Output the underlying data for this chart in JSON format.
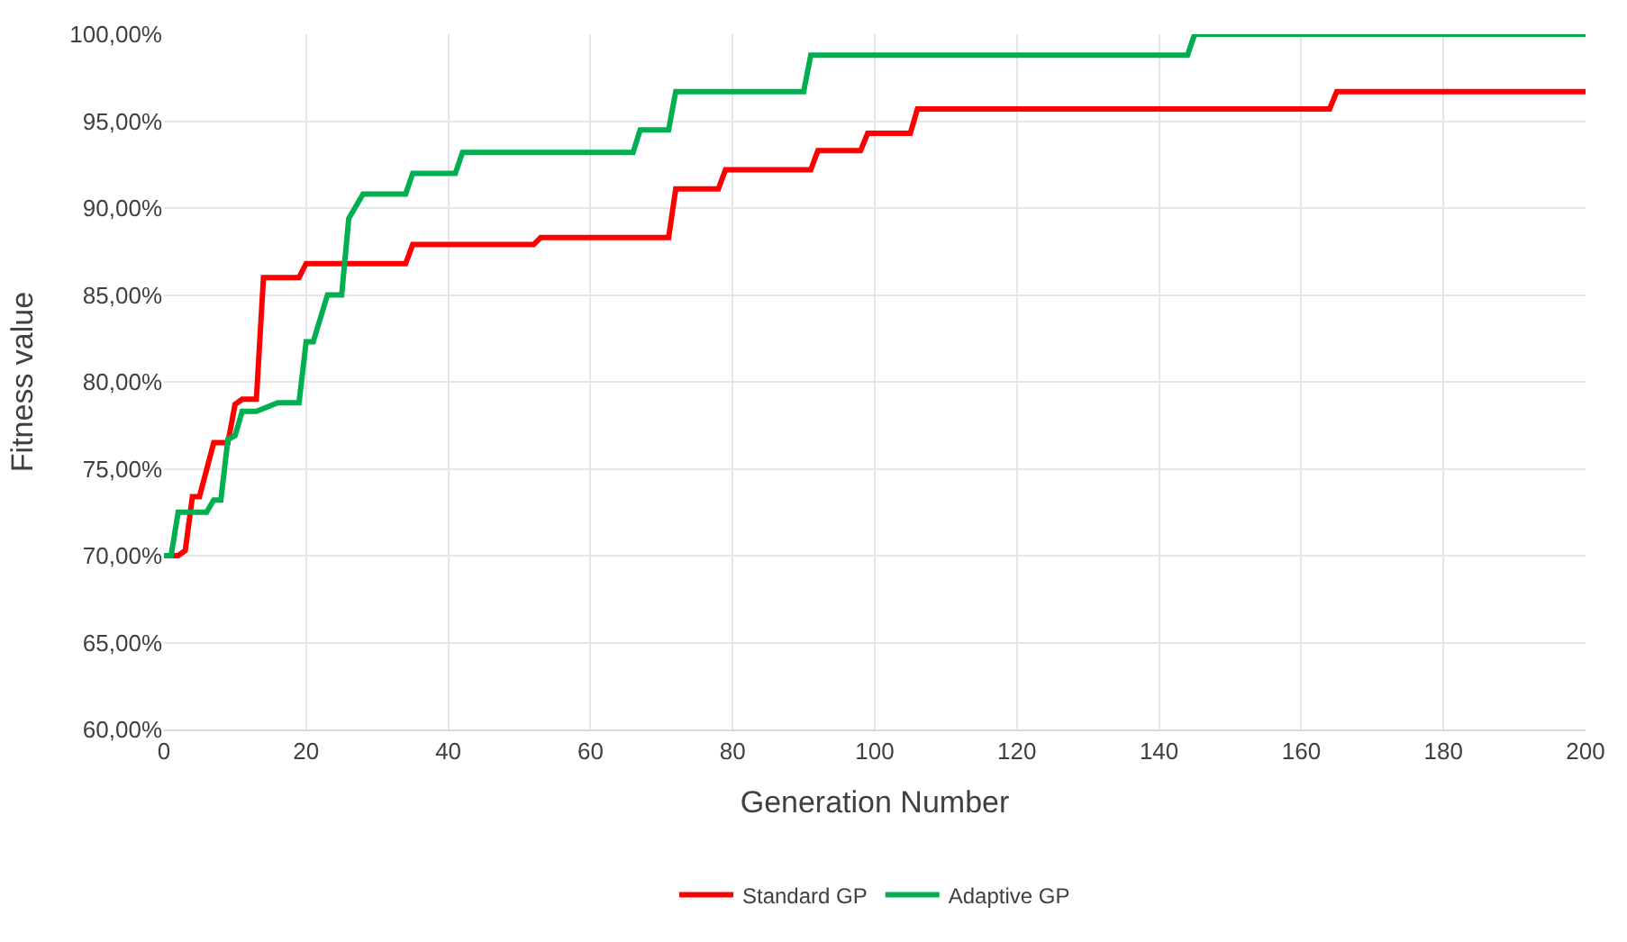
{
  "chart_data": {
    "type": "line",
    "xlabel": "Generation Number",
    "ylabel": "Fitness value",
    "xlim": [
      0,
      200
    ],
    "xticks": [
      0,
      20,
      40,
      60,
      80,
      100,
      120,
      140,
      160,
      180,
      200
    ],
    "ylim": [
      60,
      100
    ],
    "yticks": [
      {
        "value": 60,
        "label": "60,00%"
      },
      {
        "value": 65,
        "label": "65,00%"
      },
      {
        "value": 70,
        "label": "70,00%"
      },
      {
        "value": 75,
        "label": "75,00%"
      },
      {
        "value": 80,
        "label": "80,00%"
      },
      {
        "value": 85,
        "label": "85,00%"
      },
      {
        "value": 90,
        "label": "90,00%"
      },
      {
        "value": 95,
        "label": "95,00%"
      },
      {
        "value": 100,
        "label": "100,00%"
      }
    ],
    "grid": true,
    "legend": "bottom",
    "marker": "none",
    "line_style": "solid",
    "series": [
      {
        "name": "Standard GP",
        "color": "#ff0000",
        "x": [
          0,
          2,
          3,
          4,
          5,
          7,
          9,
          10,
          11,
          13,
          14,
          19,
          20,
          34,
          35,
          52,
          53,
          71,
          72,
          78,
          79,
          91,
          92,
          98,
          99,
          105,
          106,
          164,
          165,
          200
        ],
        "values": [
          70,
          70,
          70.3,
          73.4,
          73.4,
          76.5,
          76.5,
          78.7,
          79,
          79,
          86,
          86,
          86.8,
          86.8,
          87.9,
          87.9,
          88.3,
          88.3,
          91.1,
          91.1,
          92.2,
          92.2,
          93.3,
          93.3,
          94.3,
          94.3,
          95.7,
          95.7,
          96.7,
          96.7
        ]
      },
      {
        "name": "Adaptive GP",
        "color": "#00b050",
        "x": [
          0,
          1,
          2,
          6,
          7,
          8,
          9,
          10,
          11,
          13,
          16,
          19,
          20,
          21,
          23,
          25,
          26,
          28,
          34,
          35,
          41,
          42,
          66,
          67,
          71,
          72,
          90,
          91,
          144,
          145,
          200
        ],
        "values": [
          70,
          70,
          72.5,
          72.5,
          73.2,
          73.2,
          76.7,
          76.9,
          78.3,
          78.3,
          78.8,
          78.8,
          82.3,
          82.3,
          85,
          85,
          89.4,
          90.8,
          90.8,
          92,
          92,
          93.2,
          93.2,
          94.5,
          94.5,
          96.7,
          96.7,
          98.8,
          98.8,
          100,
          100
        ]
      }
    ]
  }
}
